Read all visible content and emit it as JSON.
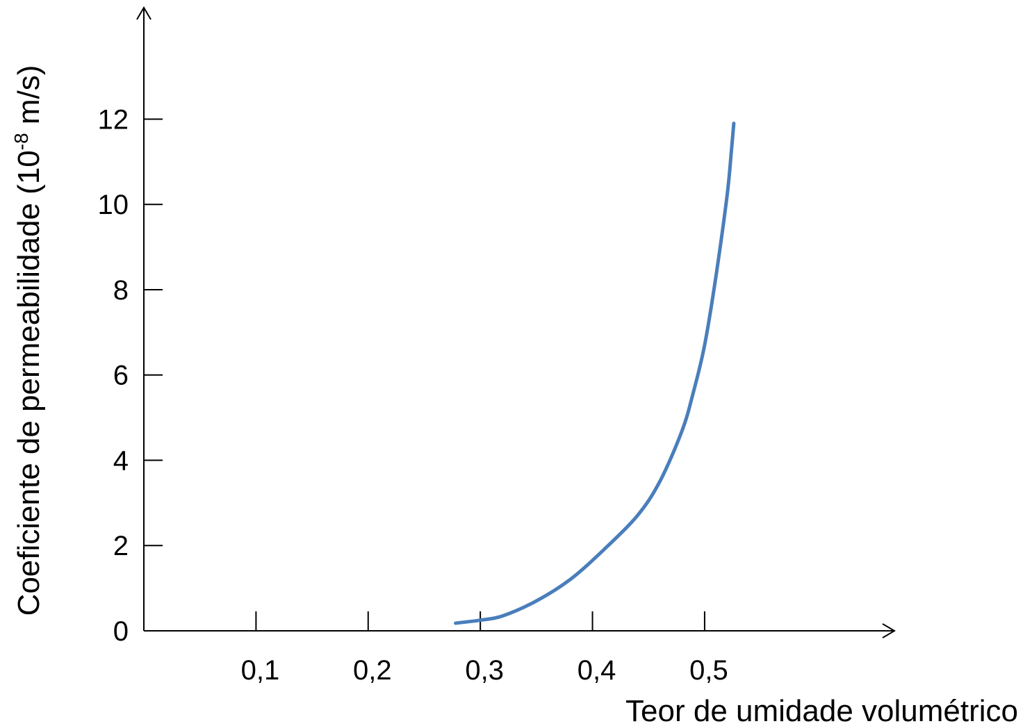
{
  "chart_data": {
    "type": "line",
    "title": "",
    "xlabel": "Teor de umidade volumétrico",
    "ylabel": {
      "main": "Coeficiente de permeabilidade (10",
      "sup": "-8",
      "tail": " m/s)"
    },
    "xlim": [
      0,
      0.65
    ],
    "ylim": [
      0,
      14.5
    ],
    "x_ticks": [
      0.1,
      0.2,
      0.3,
      0.4,
      0.5
    ],
    "x_tick_labels": [
      "0,1",
      "0,2",
      "0,3",
      "0,4",
      "0,5"
    ],
    "y_ticks": [
      0,
      2,
      4,
      6,
      8,
      10,
      12
    ],
    "y_tick_labels": [
      "0",
      "2",
      "4",
      "6",
      "8",
      "10",
      "12"
    ],
    "grid": false,
    "legend": "none",
    "series": [
      {
        "color": "#4a7ebb",
        "x": [
          0.278,
          0.3,
          0.32,
          0.35,
          0.38,
          0.41,
          0.44,
          0.46,
          0.48,
          0.49,
          0.5,
          0.51,
          0.52,
          0.524,
          0.526
        ],
        "y": [
          0.18,
          0.25,
          0.35,
          0.7,
          1.2,
          1.9,
          2.7,
          3.5,
          4.7,
          5.6,
          6.7,
          8.3,
          10.2,
          11.3,
          11.9
        ]
      }
    ]
  }
}
